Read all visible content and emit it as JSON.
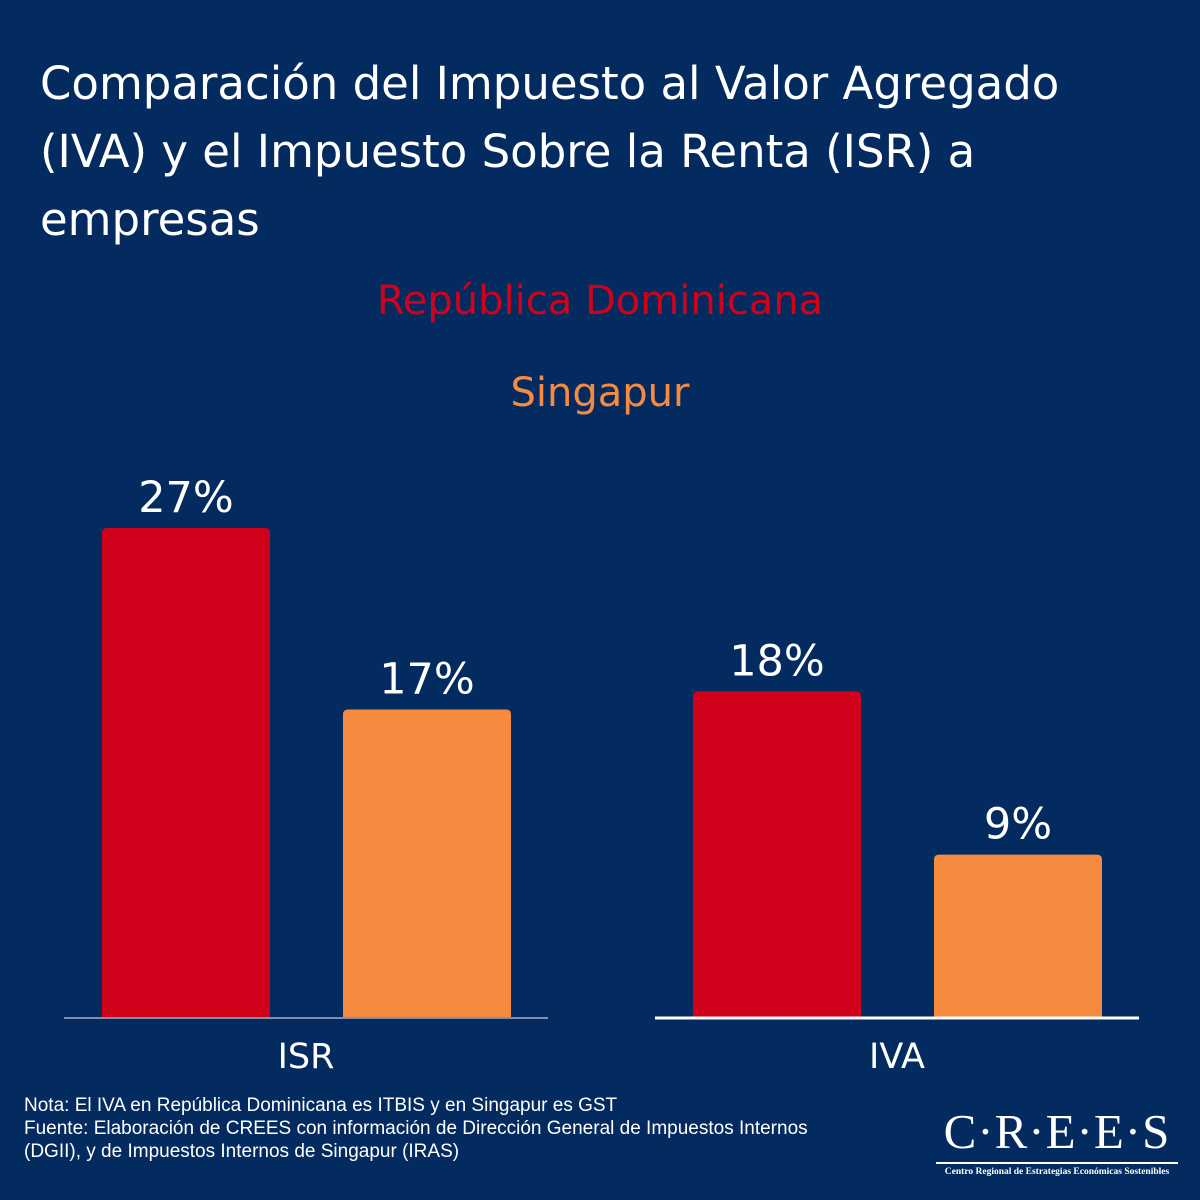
{
  "title": "Comparación del Impuesto al Valor Agregado (IVA) y el Impuesto Sobre la Renta (ISR) a empresas",
  "legend": {
    "rd": {
      "label": "República Dominicana",
      "color": "#d0021b"
    },
    "sg": {
      "label": "Singapur",
      "color": "#f68a3f"
    }
  },
  "colors": {
    "background": "#032b5f",
    "text": "#ffffff"
  },
  "chart_data": {
    "type": "bar",
    "categories": [
      "ISR",
      "IVA"
    ],
    "series": [
      {
        "name": "República Dominicana",
        "key": "rd",
        "values": [
          27,
          18
        ],
        "labels": [
          "27%",
          "18%"
        ]
      },
      {
        "name": "Singapur",
        "key": "sg",
        "values": [
          17,
          9
        ],
        "labels": [
          "17%",
          "9%"
        ]
      }
    ],
    "unit": "%",
    "ylim": [
      0,
      27
    ],
    "grid": false,
    "legend_position": "top-center"
  },
  "footer": {
    "note": "Nota: El IVA en República Dominicana es ITBIS y en Singapur es GST",
    "source_line1": "Fuente: Elaboración de CREES con información de Dirección General de Impuestos Internos",
    "source_line2": "(DGII), y de Impuestos Internos de Singapur (IRAS)"
  },
  "logo": {
    "mark": "C·R·E·E·S",
    "subtitle": "Centro Regional de Estrategias Económicas Sostenibles"
  }
}
